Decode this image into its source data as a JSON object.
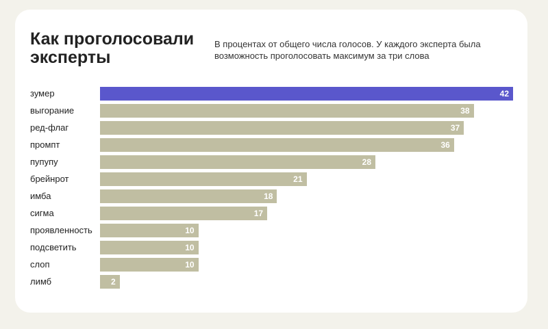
{
  "chart_data": {
    "type": "bar",
    "orientation": "horizontal",
    "title": "Как проголосовали эксперты",
    "subtitle": "В процентах от общего числа голосов. У каждого эксперта была возможность проголосовать максимум за три слова",
    "categories": [
      "зумер",
      "выгорание",
      "ред-флаг",
      "промпт",
      "пупупу",
      "брейнрот",
      "имба",
      "сигма",
      "проявленность",
      "подсветить",
      "слоп",
      "лимб"
    ],
    "values": [
      42,
      38,
      37,
      36,
      28,
      21,
      18,
      17,
      10,
      10,
      10,
      2
    ],
    "xlim": [
      0,
      42
    ],
    "grid": false,
    "colors": {
      "highlight": "#5a57cc",
      "default": "#c0bea2"
    }
  }
}
